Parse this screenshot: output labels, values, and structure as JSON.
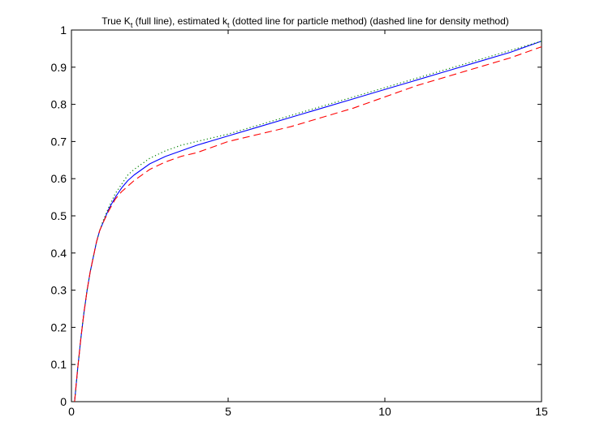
{
  "chart_data": {
    "type": "line",
    "title": {
      "part1": "True K",
      "sub1": "t",
      "part2": " (full line), estimated k",
      "sub2": "t",
      "part3": " (dotted line for particle method) (dashed line for density method)"
    },
    "xlabel": "",
    "ylabel": "",
    "xlim": [
      0,
      15
    ],
    "ylim": [
      0,
      1
    ],
    "xticks": [
      0,
      5,
      10,
      15
    ],
    "xtick_labels": [
      "0",
      "5",
      "10",
      "15"
    ],
    "yticks": [
      0,
      0.1,
      0.2,
      0.3,
      0.4,
      0.5,
      0.6,
      0.7,
      0.8,
      0.9,
      1
    ],
    "ytick_labels": [
      "0",
      "0.1",
      "0.2",
      "0.3",
      "0.4",
      "0.5",
      "0.6",
      "0.7",
      "0.8",
      "0.9",
      "1"
    ],
    "grid": false,
    "legend": "none",
    "series": [
      {
        "style": "solid",
        "color": "#0000ff",
        "x": [
          0.1,
          0.2,
          0.3,
          0.4,
          0.5,
          0.6,
          0.7,
          0.8,
          0.9,
          1.0,
          1.2,
          1.4,
          1.6,
          1.8,
          2.0,
          2.5,
          3.0,
          3.5,
          4.0,
          5.0,
          6.0,
          7.0,
          8.0,
          9.0,
          10.0,
          11.0,
          12.0,
          13.0,
          14.0,
          15.0
        ],
        "y": [
          0.0,
          0.09,
          0.17,
          0.24,
          0.3,
          0.35,
          0.39,
          0.43,
          0.46,
          0.48,
          0.52,
          0.55,
          0.575,
          0.595,
          0.61,
          0.64,
          0.66,
          0.675,
          0.69,
          0.715,
          0.74,
          0.765,
          0.79,
          0.815,
          0.84,
          0.865,
          0.89,
          0.915,
          0.94,
          0.97
        ]
      },
      {
        "style": "dotted",
        "color": "#008000",
        "x": [
          0.1,
          0.2,
          0.3,
          0.4,
          0.5,
          0.6,
          0.7,
          0.8,
          0.9,
          1.0,
          1.2,
          1.4,
          1.6,
          1.8,
          2.0,
          2.5,
          3.0,
          3.5,
          4.0,
          5.0,
          6.0,
          7.0,
          8.0,
          9.0,
          10.0,
          11.0,
          12.0,
          13.0,
          14.0,
          15.0
        ],
        "y": [
          0.0,
          0.09,
          0.17,
          0.24,
          0.3,
          0.35,
          0.39,
          0.43,
          0.46,
          0.485,
          0.525,
          0.56,
          0.585,
          0.61,
          0.625,
          0.655,
          0.675,
          0.69,
          0.7,
          0.72,
          0.745,
          0.77,
          0.795,
          0.82,
          0.845,
          0.87,
          0.895,
          0.92,
          0.945,
          0.97
        ]
      },
      {
        "style": "dashed",
        "color": "#ff0000",
        "x": [
          0.1,
          0.2,
          0.3,
          0.4,
          0.5,
          0.6,
          0.7,
          0.8,
          0.9,
          1.0,
          1.2,
          1.4,
          1.6,
          1.8,
          2.0,
          2.5,
          3.0,
          3.5,
          4.0,
          5.0,
          6.0,
          7.0,
          8.0,
          9.0,
          10.0,
          11.0,
          12.0,
          13.0,
          14.0,
          15.0
        ],
        "y": [
          0.0,
          0.09,
          0.17,
          0.24,
          0.3,
          0.35,
          0.39,
          0.43,
          0.46,
          0.48,
          0.515,
          0.545,
          0.565,
          0.58,
          0.595,
          0.625,
          0.645,
          0.66,
          0.67,
          0.7,
          0.72,
          0.74,
          0.765,
          0.79,
          0.82,
          0.85,
          0.875,
          0.9,
          0.925,
          0.955
        ]
      }
    ]
  }
}
